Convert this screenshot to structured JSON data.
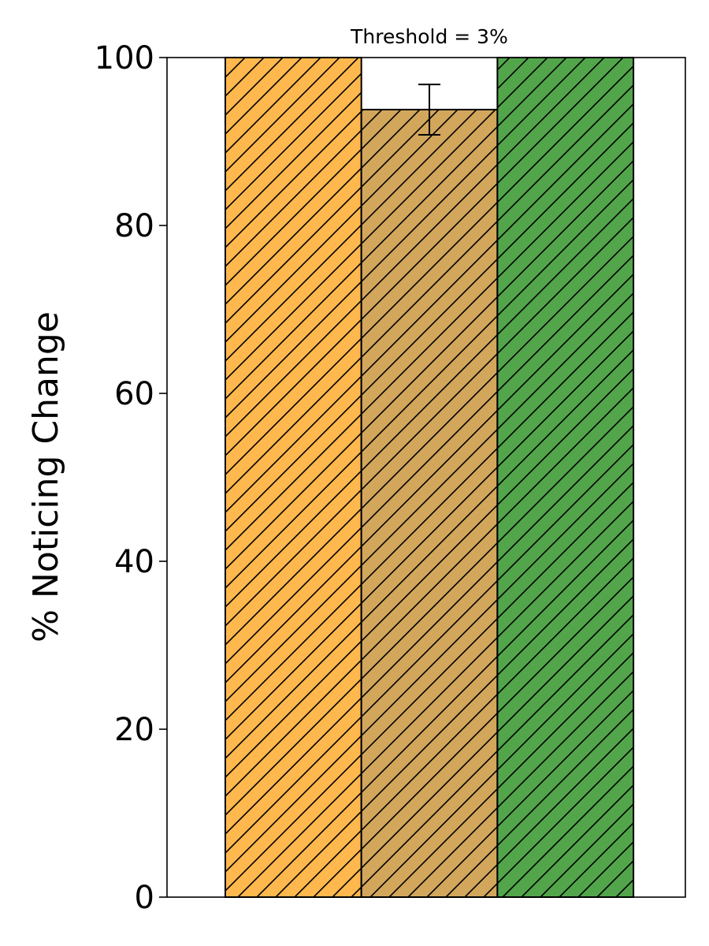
{
  "chart_data": {
    "type": "bar",
    "title": "Threshold = 3%",
    "ylabel": "% Noticing Change",
    "xlabel": "",
    "ylim": [
      0,
      100
    ],
    "yticks": [
      0,
      20,
      40,
      60,
      80,
      100
    ],
    "grid": false,
    "hatch": "diagonal",
    "bars": [
      {
        "value": 100,
        "color": "#ffb84d",
        "error": null
      },
      {
        "value": 93.8,
        "color": "#d2a65b",
        "error": 3.0
      },
      {
        "value": 100,
        "color": "#52a54a",
        "error": null
      }
    ]
  }
}
